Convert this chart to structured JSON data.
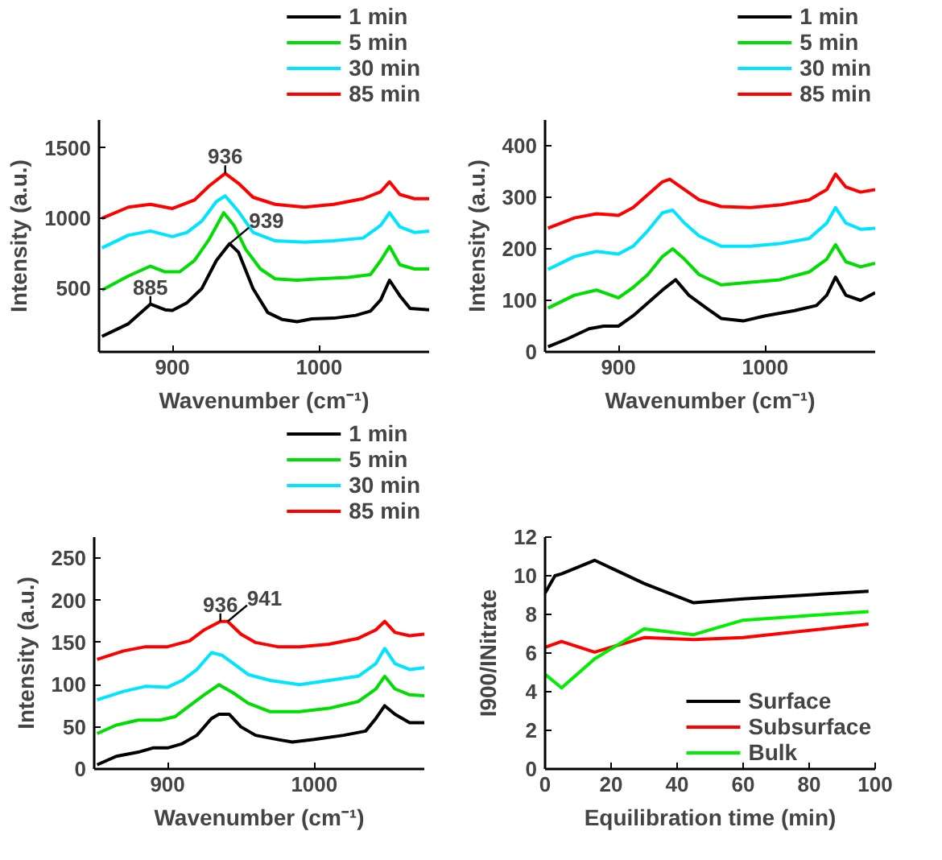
{
  "chart_data": [
    {
      "type": "line",
      "xlabel": "Wavenumber (cm⁻¹)",
      "ylabel": "Intensity (a.u.)",
      "xlim": [
        850,
        1075
      ],
      "ylim": [
        50,
        1700
      ],
      "xticks": [
        900,
        1000
      ],
      "yticks": [
        500,
        1000,
        1500
      ],
      "legend": "top right",
      "grid": false,
      "series": [
        {
          "name": "1 min",
          "color": "#000000",
          "x": [
            852,
            870,
            885,
            895,
            900,
            910,
            920,
            930,
            939,
            945,
            955,
            965,
            975,
            985,
            995,
            1010,
            1025,
            1035,
            1042,
            1048,
            1055,
            1062,
            1075
          ],
          "values": [
            160,
            250,
            390,
            350,
            345,
            400,
            500,
            700,
            820,
            760,
            500,
            330,
            280,
            265,
            285,
            290,
            310,
            340,
            420,
            560,
            450,
            360,
            350
          ]
        },
        {
          "name": "5 min",
          "color": "#00dd00",
          "x": [
            852,
            870,
            885,
            895,
            905,
            915,
            925,
            935,
            942,
            950,
            960,
            970,
            985,
            1000,
            1020,
            1035,
            1042,
            1048,
            1055,
            1065,
            1075
          ],
          "values": [
            490,
            590,
            660,
            620,
            620,
            700,
            850,
            1040,
            950,
            780,
            640,
            570,
            560,
            570,
            580,
            600,
            700,
            800,
            670,
            640,
            640
          ]
        },
        {
          "name": "30 min",
          "color": "#00e5ff",
          "x": [
            852,
            870,
            885,
            900,
            910,
            920,
            930,
            936,
            945,
            955,
            970,
            990,
            1010,
            1030,
            1042,
            1048,
            1055,
            1065,
            1075
          ],
          "values": [
            790,
            880,
            910,
            870,
            900,
            980,
            1120,
            1160,
            1050,
            900,
            840,
            830,
            840,
            860,
            950,
            1040,
            940,
            900,
            910
          ]
        },
        {
          "name": "85 min",
          "color": "#ff0000",
          "x": [
            852,
            870,
            885,
            900,
            915,
            925,
            936,
            945,
            955,
            970,
            990,
            1010,
            1030,
            1042,
            1048,
            1055,
            1065,
            1075
          ],
          "values": [
            1000,
            1080,
            1100,
            1070,
            1130,
            1230,
            1320,
            1250,
            1150,
            1100,
            1080,
            1100,
            1140,
            1190,
            1260,
            1170,
            1140,
            1140
          ]
        }
      ],
      "annotations": [
        {
          "text": "885",
          "x": 885,
          "y": 390
        },
        {
          "text": "939",
          "x": 939,
          "y": 820
        },
        {
          "text": "936",
          "x": 936,
          "y": 1320
        }
      ]
    },
    {
      "type": "line",
      "xlabel": "Wavenumber (cm⁻¹)",
      "ylabel": "Intensity (a.u.)",
      "xlim": [
        850,
        1075
      ],
      "ylim": [
        0,
        450
      ],
      "xticks": [
        900,
        1000
      ],
      "yticks": [
        0,
        100,
        200,
        300,
        400
      ],
      "legend": "top right",
      "grid": false,
      "series": [
        {
          "name": "1 min",
          "color": "#000000",
          "x": [
            852,
            865,
            880,
            890,
            900,
            910,
            920,
            930,
            939,
            948,
            960,
            970,
            985,
            1000,
            1020,
            1035,
            1042,
            1048,
            1055,
            1065,
            1075
          ],
          "values": [
            10,
            25,
            45,
            50,
            50,
            70,
            95,
            120,
            140,
            110,
            85,
            65,
            60,
            70,
            80,
            90,
            110,
            145,
            110,
            100,
            115
          ]
        },
        {
          "name": "5 min",
          "color": "#00dd00",
          "x": [
            852,
            870,
            885,
            900,
            910,
            920,
            930,
            937,
            945,
            955,
            970,
            990,
            1010,
            1030,
            1042,
            1048,
            1055,
            1065,
            1075
          ],
          "values": [
            85,
            110,
            120,
            105,
            125,
            150,
            185,
            200,
            180,
            150,
            130,
            135,
            140,
            155,
            180,
            208,
            175,
            165,
            172
          ]
        },
        {
          "name": "30 min",
          "color": "#00e5ff",
          "x": [
            852,
            870,
            885,
            900,
            910,
            920,
            930,
            937,
            945,
            955,
            970,
            990,
            1010,
            1030,
            1042,
            1048,
            1055,
            1065,
            1075
          ],
          "values": [
            160,
            185,
            195,
            190,
            205,
            235,
            270,
            275,
            250,
            225,
            205,
            205,
            210,
            220,
            250,
            280,
            250,
            238,
            240
          ]
        },
        {
          "name": "85 min",
          "color": "#ff0000",
          "x": [
            852,
            870,
            885,
            900,
            910,
            920,
            930,
            935,
            945,
            955,
            970,
            990,
            1010,
            1030,
            1042,
            1048,
            1055,
            1065,
            1075
          ],
          "values": [
            240,
            260,
            268,
            265,
            280,
            305,
            330,
            335,
            315,
            295,
            282,
            280,
            285,
            295,
            315,
            345,
            320,
            310,
            315
          ]
        }
      ]
    },
    {
      "type": "line",
      "xlabel": "Wavenumber (cm⁻¹)",
      "ylabel": "Intensity (a.u.)",
      "xlim": [
        850,
        1075
      ],
      "ylim": [
        0,
        275
      ],
      "xticks": [
        900,
        1000
      ],
      "yticks": [
        0,
        50,
        100,
        150,
        200,
        250
      ],
      "legend": "top right",
      "grid": false,
      "series": [
        {
          "name": "1 min",
          "color": "#000000",
          "x": [
            852,
            865,
            880,
            890,
            900,
            910,
            920,
            930,
            935,
            942,
            950,
            960,
            975,
            985,
            1000,
            1020,
            1035,
            1042,
            1048,
            1055,
            1065,
            1075
          ],
          "values": [
            5,
            15,
            20,
            25,
            25,
            30,
            40,
            60,
            65,
            65,
            50,
            40,
            35,
            32,
            35,
            40,
            45,
            60,
            75,
            65,
            55,
            55
          ]
        },
        {
          "name": "5 min",
          "color": "#00dd00",
          "x": [
            852,
            865,
            880,
            895,
            905,
            915,
            925,
            935,
            945,
            955,
            970,
            990,
            1010,
            1030,
            1042,
            1048,
            1055,
            1065,
            1075
          ],
          "values": [
            42,
            52,
            58,
            58,
            62,
            75,
            88,
            100,
            90,
            78,
            68,
            68,
            72,
            80,
            95,
            110,
            95,
            88,
            87
          ]
        },
        {
          "name": "30 min",
          "color": "#00e5ff",
          "x": [
            852,
            870,
            885,
            900,
            910,
            920,
            930,
            937,
            945,
            955,
            970,
            990,
            1010,
            1030,
            1042,
            1048,
            1055,
            1065,
            1075
          ],
          "values": [
            82,
            92,
            98,
            97,
            105,
            118,
            138,
            135,
            125,
            112,
            105,
            100,
            105,
            110,
            125,
            143,
            125,
            118,
            120
          ]
        },
        {
          "name": "85 min",
          "color": "#ff0000",
          "x": [
            852,
            870,
            885,
            900,
            915,
            925,
            936,
            941,
            950,
            960,
            975,
            990,
            1010,
            1030,
            1042,
            1048,
            1055,
            1065,
            1075
          ],
          "values": [
            130,
            140,
            145,
            145,
            152,
            165,
            175,
            175,
            160,
            150,
            145,
            145,
            148,
            155,
            165,
            175,
            162,
            158,
            160
          ]
        }
      ],
      "annotations": [
        {
          "text": "936",
          "x": 936,
          "y": 175
        },
        {
          "text": "941",
          "x": 941,
          "y": 175
        }
      ]
    },
    {
      "type": "line",
      "xlabel": "Equilibration time (min)",
      "ylabel": "I900/INitrate",
      "xlim": [
        0,
        100
      ],
      "ylim": [
        0,
        12
      ],
      "xticks": [
        0,
        20,
        40,
        60,
        80,
        100
      ],
      "yticks": [
        0,
        2,
        4,
        6,
        8,
        10,
        12
      ],
      "legend": "bottom right",
      "grid": false,
      "series": [
        {
          "name": "Surface",
          "color": "#000000",
          "x": [
            0,
            3,
            5,
            15,
            30,
            45,
            60,
            98
          ],
          "values": [
            9.1,
            10.0,
            10.1,
            10.8,
            9.6,
            8.6,
            8.8,
            9.2
          ]
        },
        {
          "name": "Subsurface",
          "color": "#ff0000",
          "x": [
            0,
            5,
            15,
            30,
            45,
            60,
            98
          ],
          "values": [
            6.3,
            6.6,
            6.05,
            6.8,
            6.7,
            6.8,
            7.5
          ]
        },
        {
          "name": "Bulk",
          "color": "#00ee00",
          "x": [
            0,
            5,
            15,
            30,
            45,
            60,
            98
          ],
          "values": [
            4.9,
            4.2,
            5.7,
            7.25,
            6.95,
            7.7,
            8.15
          ]
        }
      ]
    }
  ]
}
